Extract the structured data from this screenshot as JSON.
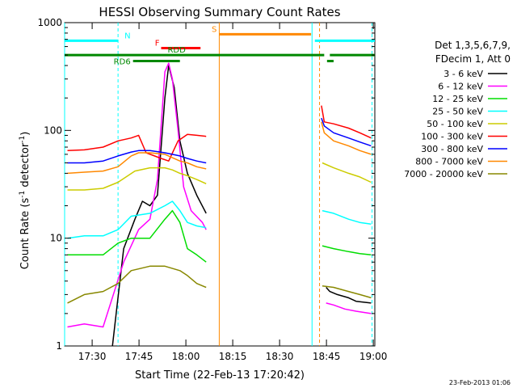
{
  "chart_data": {
    "type": "line",
    "title": "HESSI Observing Summary Count Rates",
    "xlabel": "Start Time (22-Feb-13 17:20:42)",
    "ylabel_main": "Count Rate (s",
    "ylabel_sup1": "-1",
    "ylabel_mid": " detector",
    "ylabel_sup2": "-1",
    "ylabel_end": ")",
    "yscale": "log",
    "ylim": [
      1,
      1000
    ],
    "x_ticks": [
      {
        "value": 0.4919,
        "label": "17:30"
      },
      {
        "value": 0.7419,
        "label": "17:45"
      },
      {
        "value": 0.9919,
        "label": "18:00"
      },
      {
        "value": 1.2419,
        "label": "18:15"
      },
      {
        "value": 1.4919,
        "label": "18:30"
      },
      {
        "value": 1.7419,
        "label": "18:45"
      },
      {
        "value": 1.9919,
        "label": "19:00"
      }
    ],
    "y_ticks": [
      {
        "value": 1,
        "label": "1"
      },
      {
        "value": 10,
        "label": "10"
      },
      {
        "value": 100,
        "label": "100"
      },
      {
        "value": 1000,
        "label": "1000"
      }
    ],
    "xlim": [
      0.345,
      2.0
    ],
    "legend": {
      "header": [
        "Det 1,3,5,6,7,9,",
        "FDecim 1, Att 0"
      ],
      "entries": [
        {
          "label": "3 - 6 keV",
          "color": "#000000"
        },
        {
          "label": "6 - 12 keV",
          "color": "#ff00ff"
        },
        {
          "label": "12 - 25 keV",
          "color": "#00dd00"
        },
        {
          "label": "25 - 50 keV",
          "color": "#00ffff"
        },
        {
          "label": "50 - 100 keV",
          "color": "#cccc00"
        },
        {
          "label": "100 - 300 keV",
          "color": "#ff0000"
        },
        {
          "label": "300 - 800 keV",
          "color": "#0000ff"
        },
        {
          "label": "800 - 7000 keV",
          "color": "#ff8800"
        },
        {
          "label": "7000 - 20000 keV",
          "color": "#888800"
        }
      ]
    },
    "flags": [
      {
        "label": "N",
        "color": "#00ffff",
        "ranges": [
          [
            0.345,
            0.63
          ],
          [
            1.68,
            2.0
          ]
        ],
        "y_level": 680
      },
      {
        "label": "F",
        "color": "#ff0000",
        "ranges": [
          [
            0.86,
            1.07
          ]
        ],
        "y_level": 580
      },
      {
        "label": "RDD",
        "color": "#008800",
        "ranges": [
          [
            0.345,
            1.73
          ],
          [
            1.76,
            2.0
          ]
        ],
        "y_level": 500
      },
      {
        "label": "S",
        "color": "#ff8800",
        "ranges": [
          [
            1.17,
            1.66
          ]
        ],
        "y_level": 780
      },
      {
        "label": "RD6",
        "color": "#008800",
        "ranges": [
          [
            0.71,
            0.96
          ],
          [
            1.745,
            1.78
          ]
        ],
        "y_level": 440
      }
    ],
    "vlines": [
      {
        "x": 0.345,
        "color": "#00ffff",
        "style": "solid"
      },
      {
        "x": 0.63,
        "color": "#00ffff",
        "style": "dashed"
      },
      {
        "x": 1.17,
        "color": "#ff8800",
        "style": "solid"
      },
      {
        "x": 1.665,
        "color": "#00ffff",
        "style": "solid"
      },
      {
        "x": 1.705,
        "color": "#ff8800",
        "style": "dashed"
      },
      {
        "x": 1.985,
        "color": "#00ffff",
        "style": "dashed"
      }
    ],
    "series": [
      {
        "name": "3 - 6 keV",
        "color": "#000000",
        "segments": [
          [
            [
              0.6,
              1.0
            ],
            [
              0.62,
              2.0
            ],
            [
              0.66,
              8
            ],
            [
              0.72,
              15
            ],
            [
              0.76,
              22
            ],
            [
              0.8,
              20
            ],
            [
              0.84,
              25
            ],
            [
              0.88,
              200
            ],
            [
              0.9,
              400
            ],
            [
              0.93,
              250
            ],
            [
              0.96,
              80
            ],
            [
              1.0,
              40
            ],
            [
              1.05,
              25
            ],
            [
              1.1,
              17
            ]
          ],
          [
            [
              1.74,
              3.5
            ],
            [
              1.76,
              3.2
            ],
            [
              1.8,
              3.0
            ],
            [
              1.86,
              2.8
            ],
            [
              1.9,
              2.6
            ],
            [
              1.98,
              2.5
            ]
          ]
        ]
      },
      {
        "name": "6 - 12 keV",
        "color": "#ff00ff",
        "segments": [
          [
            [
              0.36,
              1.5
            ],
            [
              0.45,
              1.6
            ],
            [
              0.55,
              1.5
            ],
            [
              0.66,
              6
            ],
            [
              0.74,
              12
            ],
            [
              0.8,
              15
            ],
            [
              0.84,
              35
            ],
            [
              0.88,
              350
            ],
            [
              0.9,
              420
            ],
            [
              0.92,
              300
            ],
            [
              0.95,
              100
            ],
            [
              0.98,
              30
            ],
            [
              1.02,
              18
            ],
            [
              1.08,
              14
            ],
            [
              1.1,
              12
            ]
          ],
          [
            [
              1.74,
              2.5
            ],
            [
              1.78,
              2.4
            ],
            [
              1.84,
              2.2
            ],
            [
              1.9,
              2.1
            ],
            [
              1.98,
              2.0
            ]
          ]
        ]
      },
      {
        "name": "12 - 25 keV",
        "color": "#00dd00",
        "segments": [
          [
            [
              0.36,
              7
            ],
            [
              0.45,
              7
            ],
            [
              0.55,
              7
            ],
            [
              0.63,
              9
            ],
            [
              0.7,
              10
            ],
            [
              0.8,
              10
            ],
            [
              0.88,
              15
            ],
            [
              0.92,
              18
            ],
            [
              0.96,
              14
            ],
            [
              1.0,
              8
            ],
            [
              1.05,
              7
            ],
            [
              1.1,
              6
            ]
          ],
          [
            [
              1.72,
              8.5
            ],
            [
              1.78,
              8
            ],
            [
              1.86,
              7.5
            ],
            [
              1.92,
              7.2
            ],
            [
              1.98,
              7
            ]
          ]
        ]
      },
      {
        "name": "25 - 50 keV",
        "color": "#00ffff",
        "segments": [
          [
            [
              0.36,
              10
            ],
            [
              0.45,
              10.5
            ],
            [
              0.55,
              10.5
            ],
            [
              0.63,
              12
            ],
            [
              0.7,
              16
            ],
            [
              0.8,
              17
            ],
            [
              0.88,
              20
            ],
            [
              0.92,
              22
            ],
            [
              0.96,
              18
            ],
            [
              1.0,
              14
            ],
            [
              1.05,
              13
            ],
            [
              1.1,
              12.5
            ]
          ],
          [
            [
              1.72,
              18
            ],
            [
              1.78,
              17
            ],
            [
              1.86,
              15
            ],
            [
              1.92,
              14
            ],
            [
              1.98,
              13.5
            ]
          ]
        ]
      },
      {
        "name": "50 - 100 keV",
        "color": "#cccc00",
        "segments": [
          [
            [
              0.36,
              28
            ],
            [
              0.45,
              28
            ],
            [
              0.55,
              29
            ],
            [
              0.63,
              33
            ],
            [
              0.72,
              42
            ],
            [
              0.8,
              45
            ],
            [
              0.88,
              45
            ],
            [
              0.92,
              43
            ],
            [
              0.96,
              40
            ],
            [
              1.0,
              38
            ],
            [
              1.05,
              35
            ],
            [
              1.1,
              32
            ]
          ],
          [
            [
              1.72,
              50
            ],
            [
              1.78,
              45
            ],
            [
              1.86,
              40
            ],
            [
              1.92,
              37
            ],
            [
              1.98,
              33
            ]
          ]
        ]
      },
      {
        "name": "100 - 300 keV",
        "color": "#ff0000",
        "segments": [
          [
            [
              0.36,
              65
            ],
            [
              0.45,
              66
            ],
            [
              0.55,
              70
            ],
            [
              0.63,
              80
            ],
            [
              0.7,
              85
            ],
            [
              0.74,
              90
            ],
            [
              0.78,
              62
            ],
            [
              0.86,
              55
            ],
            [
              0.9,
              52
            ],
            [
              0.95,
              80
            ],
            [
              1.0,
              92
            ],
            [
              1.05,
              90
            ],
            [
              1.1,
              88
            ]
          ],
          [
            [
              1.715,
              170
            ],
            [
              1.73,
              120
            ],
            [
              1.78,
              115
            ],
            [
              1.86,
              105
            ],
            [
              1.92,
              95
            ],
            [
              1.98,
              85
            ]
          ]
        ]
      },
      {
        "name": "300 - 800 keV",
        "color": "#0000ff",
        "segments": [
          [
            [
              0.36,
              50
            ],
            [
              0.45,
              50
            ],
            [
              0.55,
              52
            ],
            [
              0.63,
              58
            ],
            [
              0.7,
              63
            ],
            [
              0.74,
              65
            ],
            [
              0.8,
              65
            ],
            [
              0.88,
              62
            ],
            [
              0.96,
              58
            ],
            [
              1.0,
              55
            ],
            [
              1.05,
              52
            ],
            [
              1.1,
              50
            ]
          ],
          [
            [
              1.715,
              130
            ],
            [
              1.73,
              110
            ],
            [
              1.78,
              95
            ],
            [
              1.86,
              85
            ],
            [
              1.92,
              78
            ],
            [
              1.98,
              72
            ]
          ]
        ]
      },
      {
        "name": "800 - 7000 keV",
        "color": "#ff8800",
        "segments": [
          [
            [
              0.36,
              40
            ],
            [
              0.45,
              41
            ],
            [
              0.55,
              42
            ],
            [
              0.63,
              46
            ],
            [
              0.7,
              58
            ],
            [
              0.74,
              62
            ],
            [
              0.8,
              62
            ],
            [
              0.88,
              60
            ],
            [
              0.96,
              52
            ],
            [
              1.0,
              50
            ],
            [
              1.05,
              46
            ],
            [
              1.1,
              44
            ]
          ],
          [
            [
              1.715,
              120
            ],
            [
              1.73,
              95
            ],
            [
              1.78,
              80
            ],
            [
              1.86,
              72
            ],
            [
              1.92,
              65
            ],
            [
              1.98,
              60
            ]
          ]
        ]
      },
      {
        "name": "7000 - 20000 keV",
        "color": "#888800",
        "segments": [
          [
            [
              0.36,
              2.5
            ],
            [
              0.45,
              3.0
            ],
            [
              0.55,
              3.2
            ],
            [
              0.63,
              3.8
            ],
            [
              0.7,
              5
            ],
            [
              0.8,
              5.5
            ],
            [
              0.88,
              5.5
            ],
            [
              0.96,
              5
            ],
            [
              1.0,
              4.5
            ],
            [
              1.05,
              3.8
            ],
            [
              1.1,
              3.5
            ]
          ],
          [
            [
              1.72,
              3.6
            ],
            [
              1.78,
              3.5
            ],
            [
              1.86,
              3.2
            ],
            [
              1.92,
              3.0
            ],
            [
              1.98,
              2.8
            ]
          ]
        ]
      }
    ]
  },
  "footer": {
    "timestamp": "23-Feb-2013 01:06"
  }
}
